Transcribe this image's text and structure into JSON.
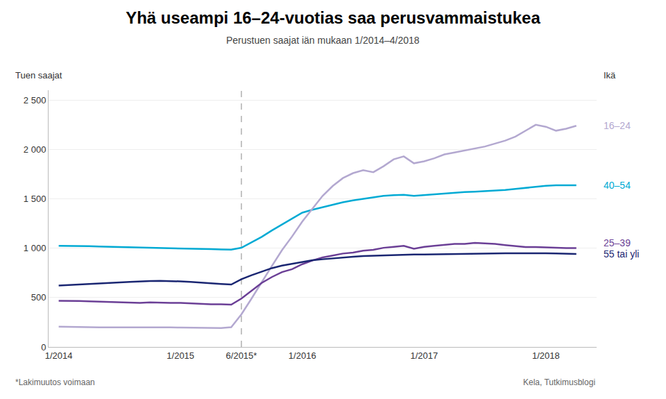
{
  "chart_data": {
    "type": "line",
    "title": "Yhä useampi 16–24-vuotias saa perusvammaistukea",
    "subtitle": "Perustuen saajat iän mukaan 1/2014–4/2018",
    "ylabel": "Tuen saajat",
    "labels_heading": "Ikä",
    "footnote": "*Lakimuutos voimaan",
    "source": "Kela, Tutkimusblogi",
    "categories": [
      "1/2014",
      null,
      null,
      null,
      null,
      null,
      null,
      null,
      null,
      null,
      null,
      null,
      "1/2015",
      null,
      null,
      null,
      null,
      null,
      "6/2015*",
      null,
      null,
      null,
      null,
      null,
      "1/2016",
      null,
      null,
      null,
      null,
      null,
      null,
      null,
      null,
      null,
      null,
      null,
      "1/2017",
      null,
      null,
      null,
      null,
      null,
      null,
      null,
      null,
      null,
      null,
      null,
      "1/2018",
      null,
      null,
      null
    ],
    "vertical_line": {
      "category": "6/2015*",
      "line_style": "dashed"
    },
    "ylim": [
      0,
      2600
    ],
    "yticks": [
      0,
      500,
      {
        "value": 1000,
        "label": "1 000"
      },
      {
        "value": 1500,
        "label": "1 500"
      },
      {
        "value": 2000,
        "label": "2 000"
      },
      {
        "value": 2500,
        "label": "2 500"
      }
    ],
    "grid": true,
    "series": [
      {
        "name": "40–54",
        "color": "#00aad4",
        "values": [
          1025,
          1025,
          1022,
          1020,
          1018,
          1015,
          1012,
          1010,
          1008,
          1005,
          1002,
          1000,
          998,
          995,
          992,
          990,
          988,
          985,
          1005,
          1060,
          1115,
          1180,
          1240,
          1300,
          1360,
          1390,
          1415,
          1445,
          1465,
          1485,
          1500,
          1515,
          1530,
          1538,
          1540,
          1530,
          1538,
          1545,
          1555,
          1562,
          1568,
          1572,
          1578,
          1580,
          1590,
          1600,
          1612,
          1625,
          1632,
          1638,
          1638,
          1638
        ]
      },
      {
        "name": "16–24",
        "color": "#b3a8d0",
        "values": [
          205,
          205,
          200,
          200,
          198,
          198,
          202,
          202,
          202,
          202,
          202,
          198,
          196,
          194,
          192,
          192,
          192,
          200,
          330,
          490,
          660,
          820,
          980,
          1120,
          1270,
          1400,
          1530,
          1630,
          1710,
          1760,
          1790,
          1770,
          1830,
          1900,
          1930,
          1860,
          1880,
          1910,
          1950,
          1970,
          1990,
          2010,
          2030,
          2060,
          2090,
          2130,
          2190,
          2250,
          2230,
          2190,
          2210,
          2240
        ]
      },
      {
        "name": "25–39",
        "color": "#6b3f96",
        "values": [
          468,
          468,
          465,
          462,
          460,
          456,
          454,
          450,
          447,
          452,
          448,
          447,
          446,
          441,
          436,
          432,
          432,
          428,
          490,
          572,
          648,
          708,
          758,
          788,
          838,
          876,
          906,
          926,
          946,
          956,
          975,
          984,
          1004,
          1014,
          1024,
          994,
          1014,
          1024,
          1034,
          1044,
          1044,
          1054,
          1048,
          1043,
          1032,
          1022,
          1012,
          1012,
          1007,
          1002,
          1002,
          1002
        ]
      },
      {
        "name": "55 tai yli",
        "color": "#1a2672",
        "values": [
          622,
          628,
          632,
          638,
          644,
          650,
          654,
          658,
          664,
          668,
          670,
          668,
          664,
          658,
          650,
          642,
          638,
          632,
          686,
          726,
          764,
          798,
          824,
          842,
          863,
          878,
          888,
          898,
          908,
          914,
          920,
          923,
          928,
          934,
          937,
          937,
          937,
          939,
          940,
          942,
          944,
          945,
          946,
          947,
          948,
          949,
          950,
          950,
          948,
          947,
          945,
          942
        ]
      }
    ]
  }
}
